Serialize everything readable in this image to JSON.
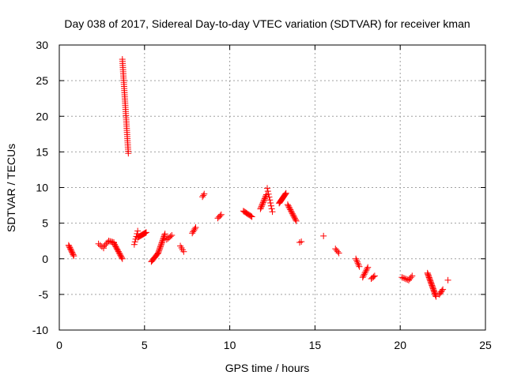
{
  "chart_data": {
    "type": "scatter",
    "title": "Day 038 of 2017, Sidereal Day-to-day VTEC variation (SDTVAR) for receiver kman",
    "xlabel": "GPS time / hours",
    "ylabel": "SDTVAR / TECUs",
    "xlim": [
      0,
      25
    ],
    "ylim": [
      -10,
      30
    ],
    "xticks": [
      0,
      5,
      10,
      15,
      20,
      25
    ],
    "yticks": [
      -10,
      -5,
      0,
      5,
      10,
      15,
      20,
      25,
      30
    ],
    "grid": true,
    "marker": "+",
    "marker_color": "#ff0000",
    "segments": [
      {
        "x": [
          0.55,
          0.85
        ],
        "y": [
          1.9,
          0.4
        ]
      },
      {
        "x": [
          2.3,
          2.6
        ],
        "y": [
          2.1,
          1.5
        ]
      },
      {
        "x": [
          2.6,
          2.9
        ],
        "y": [
          1.7,
          2.5
        ]
      },
      {
        "x": [
          2.9,
          3.2
        ],
        "y": [
          2.5,
          2.3
        ]
      },
      {
        "x": [
          3.2,
          3.7
        ],
        "y": [
          2.2,
          0.0
        ]
      },
      {
        "x": [
          3.7,
          4.05
        ],
        "y": [
          28.0,
          14.8
        ]
      },
      {
        "x": [
          4.4,
          4.6
        ],
        "y": [
          2.0,
          3.9
        ]
      },
      {
        "x": [
          4.6,
          5.1
        ],
        "y": [
          3.0,
          3.7
        ]
      },
      {
        "x": [
          5.4,
          5.8
        ],
        "y": [
          -0.4,
          0.8
        ]
      },
      {
        "x": [
          5.8,
          6.2
        ],
        "y": [
          0.8,
          3.5
        ]
      },
      {
        "x": [
          6.3,
          6.6
        ],
        "y": [
          2.7,
          3.3
        ]
      },
      {
        "x": [
          7.1,
          7.3
        ],
        "y": [
          1.8,
          1.0
        ]
      },
      {
        "x": [
          7.8,
          8.0
        ],
        "y": [
          3.6,
          4.4
        ]
      },
      {
        "x": [
          8.4,
          8.5
        ],
        "y": [
          8.7,
          9.1
        ]
      },
      {
        "x": [
          9.3,
          9.5
        ],
        "y": [
          5.7,
          6.2
        ]
      },
      {
        "x": [
          10.8,
          11.3
        ],
        "y": [
          6.7,
          5.9
        ]
      },
      {
        "x": [
          11.8,
          12.15
        ],
        "y": [
          7.0,
          9.0
        ]
      },
      {
        "x": [
          12.2,
          12.5
        ],
        "y": [
          9.9,
          6.6
        ]
      },
      {
        "x": [
          12.9,
          13.3
        ],
        "y": [
          7.8,
          9.2
        ]
      },
      {
        "x": [
          13.4,
          13.9
        ],
        "y": [
          7.6,
          5.3
        ]
      },
      {
        "x": [
          14.1,
          14.2
        ],
        "y": [
          2.3,
          2.4
        ]
      },
      {
        "x": [
          15.5,
          15.6
        ],
        "y": [
          3.2,
          3.2
        ]
      },
      {
        "x": [
          16.2,
          16.4
        ],
        "y": [
          1.4,
          0.8
        ]
      },
      {
        "x": [
          17.4,
          17.6
        ],
        "y": [
          0.0,
          -1.1
        ]
      },
      {
        "x": [
          17.8,
          18.1
        ],
        "y": [
          -2.6,
          -1.2
        ]
      },
      {
        "x": [
          18.3,
          18.5
        ],
        "y": [
          -2.8,
          -2.4
        ]
      },
      {
        "x": [
          20.1,
          20.5
        ],
        "y": [
          -2.6,
          -3.0
        ]
      },
      {
        "x": [
          20.5,
          20.7
        ],
        "y": [
          -3.0,
          -2.4
        ]
      },
      {
        "x": [
          21.6,
          22.1
        ],
        "y": [
          -2.0,
          -5.3
        ]
      },
      {
        "x": [
          22.3,
          22.5
        ],
        "y": [
          -5.0,
          -4.3
        ]
      },
      {
        "x": [
          22.8,
          22.8
        ],
        "y": [
          -3.0,
          -3.0
        ]
      }
    ],
    "points_per_segment": [
      10,
      4,
      5,
      5,
      14,
      46,
      6,
      12,
      10,
      16,
      5,
      4,
      5,
      3,
      4,
      10,
      12,
      9,
      14,
      14,
      2,
      1,
      4,
      6,
      8,
      4,
      6,
      4,
      22,
      5,
      1
    ]
  }
}
